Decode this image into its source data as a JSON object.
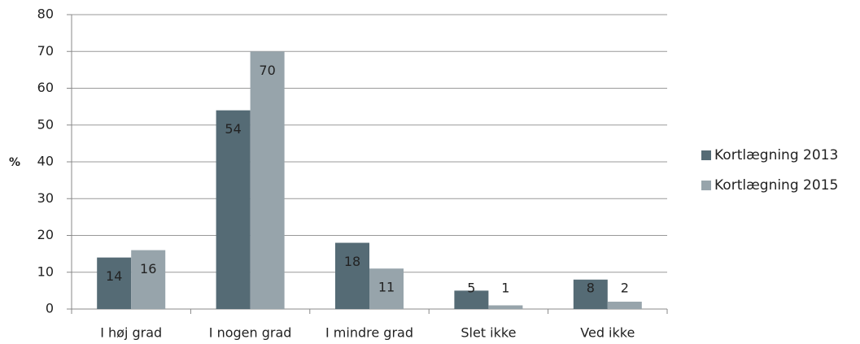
{
  "chart_data": {
    "type": "bar",
    "ylabel": "%",
    "categories": [
      "I høj grad",
      "I nogen grad",
      "I mindre grad",
      "Slet ikke",
      "Ved ikke"
    ],
    "series": [
      {
        "name": "Kortlægning 2013",
        "color": "#556b75",
        "values": [
          14,
          54,
          18,
          5,
          8
        ]
      },
      {
        "name": "Kortlægning 2015",
        "color": "#97a4ab",
        "values": [
          16,
          70,
          11,
          1,
          2
        ]
      }
    ],
    "ylim": [
      0,
      80
    ],
    "yticks": [
      0,
      10,
      20,
      30,
      40,
      50,
      60,
      70,
      80
    ],
    "grid": true,
    "legend": "right"
  }
}
